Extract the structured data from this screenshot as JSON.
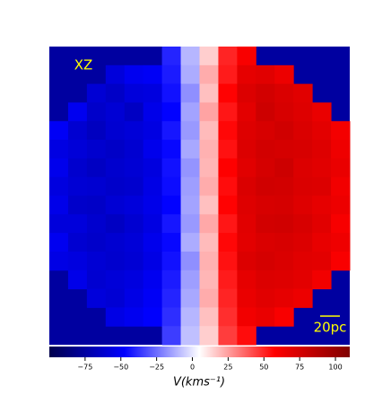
{
  "chart_data": {
    "type": "heatmap",
    "panel_label": "XZ",
    "scale_label": "20pc",
    "colorbar_label": "V(kms⁻¹)",
    "background_color": "#0000a0",
    "colormap": [
      "#00004c",
      "#0000ff",
      "#ffffff",
      "#ff0000",
      "#800000"
    ],
    "clim": [
      -100,
      110
    ],
    "cticks": [
      {
        "value": -75,
        "label": "−75"
      },
      {
        "value": -50,
        "label": "−50"
      },
      {
        "value": -25,
        "label": "−25"
      },
      0,
      25,
      50,
      75,
      100
    ],
    "z": [
      [
        null,
        null,
        null,
        null,
        null,
        null,
        -40,
        -10,
        15,
        50,
        60,
        null,
        null,
        null,
        null,
        null
      ],
      [
        null,
        null,
        null,
        -58,
        -52,
        -50,
        -42,
        -12,
        22,
        52,
        68,
        70,
        65,
        null,
        null,
        null
      ],
      [
        null,
        null,
        -60,
        -64,
        -58,
        -57,
        -44,
        -18,
        18,
        57,
        72,
        76,
        73,
        70,
        null,
        null
      ],
      [
        null,
        -52,
        -63,
        -60,
        -65,
        -54,
        -47,
        -14,
        24,
        53,
        69,
        78,
        74,
        71,
        66,
        null
      ],
      [
        -50,
        -61,
        -66,
        -61,
        -59,
        -56,
        -43,
        -16,
        19,
        56,
        71,
        74,
        77,
        73,
        69,
        62
      ],
      [
        -56,
        -59,
        -62,
        -64,
        -61,
        -53,
        -46,
        -13,
        21,
        54,
        72,
        76,
        75,
        74,
        71,
        64
      ],
      [
        -53,
        -62,
        -65,
        -62,
        -60,
        -57,
        -44,
        -17,
        20,
        58,
        70,
        75,
        78,
        72,
        70,
        66
      ],
      [
        -57,
        -60,
        -61,
        -63,
        -62,
        -55,
        -45,
        -15,
        22,
        55,
        73,
        77,
        76,
        73,
        72,
        63
      ],
      [
        -54,
        -63,
        -64,
        -60,
        -58,
        -54,
        -47,
        -14,
        18,
        57,
        71,
        74,
        75,
        71,
        68,
        65
      ],
      [
        -58,
        -58,
        -62,
        -65,
        -61,
        -56,
        -43,
        -16,
        23,
        53,
        70,
        76,
        77,
        74,
        70,
        61
      ],
      [
        -52,
        -61,
        -63,
        -61,
        -59,
        -53,
        -46,
        -12,
        19,
        56,
        69,
        73,
        74,
        72,
        67,
        64
      ],
      [
        -55,
        -57,
        -60,
        -62,
        -60,
        -55,
        -44,
        -18,
        21,
        54,
        72,
        75,
        73,
        70,
        69,
        60
      ],
      [
        null,
        -54,
        -61,
        -59,
        -57,
        -52,
        -42,
        -15,
        20,
        52,
        68,
        72,
        71,
        69,
        63,
        null
      ],
      [
        null,
        null,
        -58,
        -60,
        -55,
        -50,
        -40,
        -13,
        22,
        50,
        66,
        70,
        68,
        65,
        null,
        null
      ],
      [
        null,
        null,
        null,
        -55,
        -52,
        -48,
        -38,
        -10,
        18,
        48,
        63,
        66,
        60,
        null,
        null,
        null
      ],
      [
        null,
        null,
        null,
        null,
        null,
        null,
        -35,
        -8,
        15,
        45,
        55,
        null,
        null,
        null,
        null,
        null
      ]
    ]
  }
}
